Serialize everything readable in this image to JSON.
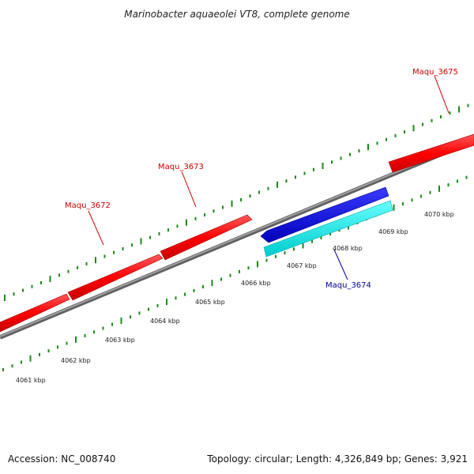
{
  "title": "Marinobacter aquaeolei VT8, complete genome",
  "footer": {
    "accession": "Accession: NC_008740",
    "summary": "Topology: circular; Length: 4,326,849 bp; Genes: 3,921"
  },
  "colors": {
    "forward_gene": "#ff0000",
    "reverse_gene": "#0000dd",
    "reverse_gene_alt": "#00e5e5",
    "backbone": "#808080",
    "tick": "#1a8a1a",
    "forward_label": "#cc0000",
    "reverse_label": "#000099"
  },
  "tick_labels": [
    "4061 kbp",
    "4062 kbp",
    "4063 kbp",
    "4064 kbp",
    "4065 kbp",
    "4066 kbp",
    "4067 kbp",
    "4068 kbp",
    "4069 kbp",
    "4070 kbp"
  ],
  "gene_labels": [
    {
      "name": "Maqu_3672",
      "strand": "forward"
    },
    {
      "name": "Maqu_3673",
      "strand": "forward"
    },
    {
      "name": "Maqu_3674",
      "strand": "reverse"
    },
    {
      "name": "Maqu_3675",
      "strand": "forward"
    }
  ]
}
